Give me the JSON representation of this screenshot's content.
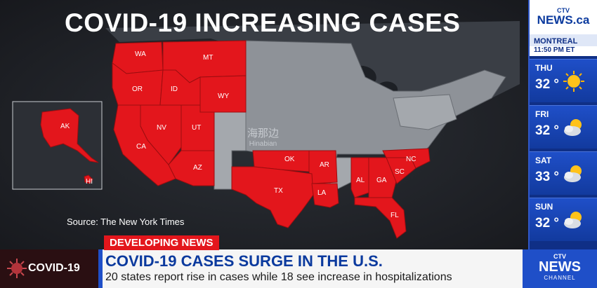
{
  "headline": "COVID-19 INCREASING CASES",
  "source": "Source: The New York Times",
  "watermark": {
    "cn": "海那边",
    "en": "Hinabian"
  },
  "states": [
    "WA",
    "MT",
    "OR",
    "ID",
    "WY",
    "NV",
    "UT",
    "CA",
    "AZ",
    "OK",
    "AR",
    "TX",
    "LA",
    "AL",
    "GA",
    "SC",
    "NC",
    "FL",
    "AK",
    "HI"
  ],
  "weather": {
    "logo_top": "CTV",
    "logo_brand": "NEWS.ca",
    "city": "MONTREAL",
    "time": "11:50 PM ET",
    "days": [
      {
        "name": "THU",
        "temp": "32 °",
        "icon": "sun-icon"
      },
      {
        "name": "FRI",
        "temp": "32 °",
        "icon": "partly-cloudy-icon"
      },
      {
        "name": "SAT",
        "temp": "33 °",
        "icon": "partly-cloudy-icon"
      },
      {
        "name": "SUN",
        "temp": "32 °",
        "icon": "partly-cloudy-icon"
      }
    ]
  },
  "lower_third": {
    "tag": "COVID-19",
    "developing": "DEVELOPING NEWS",
    "title": "COVID-19 CASES SURGE IN THE U.S.",
    "subtitle": "20 states report rise in cases while 18 see increase in hospitalizations",
    "channel_top": "CTV",
    "channel_brand": "NEWS",
    "channel_sub": "CHANNEL"
  },
  "colors": {
    "highlight": "#e3161c",
    "brand_blue": "#1f4fc8",
    "navy": "#0f2f86"
  }
}
